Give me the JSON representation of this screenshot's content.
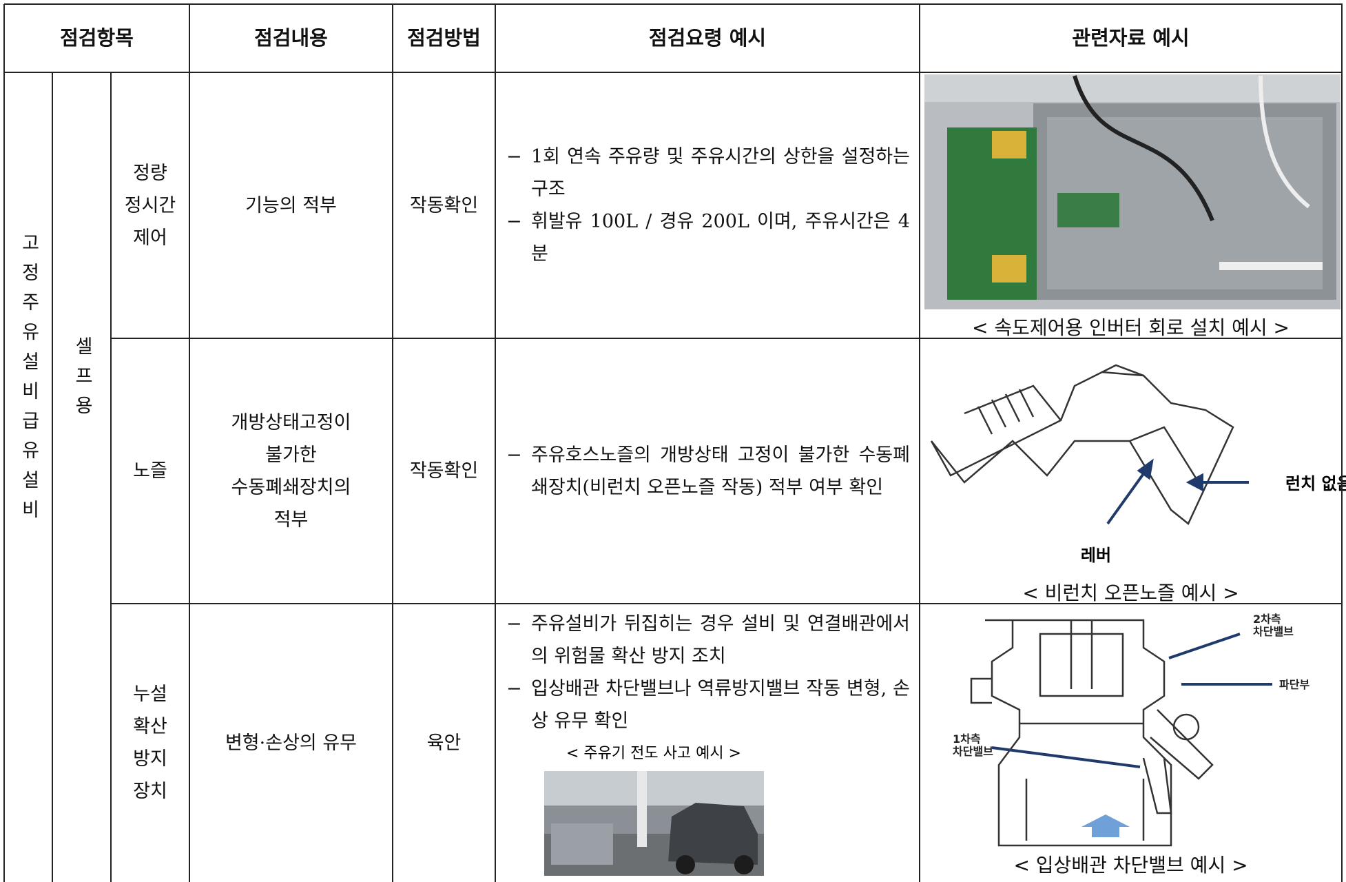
{
  "header": {
    "columns": [
      "점검항목",
      "점검내용",
      "점검방법",
      "점검요령 예시",
      "관련자료 예시"
    ]
  },
  "category": "고정주유설비급유설비",
  "subcategory": "셀프용",
  "guide_marker": "−",
  "rows": [
    {
      "item": [
        "정량",
        "정시간",
        "제어"
      ],
      "content": [
        "기능의 적부"
      ],
      "method": "작동확인",
      "guide": [
        "1회 연속 주유량 및 주유시간의 상한을 설정하는 구조",
        "휘발유 100L / 경유 200L 이며, 주유시간은 4분"
      ],
      "reference": {
        "caption": "< 속도제어용 인버터 회로 설치 예시 >"
      }
    },
    {
      "item": [
        "노즐"
      ],
      "content": [
        "개방상태고정이",
        "불가한",
        "수동폐쇄장치의",
        "적부"
      ],
      "method": "작동확인",
      "guide": [
        "주유호스노즐의 개방상태 고정이 불가한 수동폐쇄장치(비런치 오픈노즐 작동) 적부 여부 확인"
      ],
      "reference": {
        "caption": "< 비런치 오픈노즐 예시 >",
        "labels": [
          "런치 없음",
          "레버"
        ]
      }
    },
    {
      "item": [
        "누설",
        "확산",
        "방지",
        "장치"
      ],
      "content": [
        "변형·손상의 유무"
      ],
      "method": "육안",
      "guide": [
        "주유설비가 뒤집히는 경우 설비 및 연결배관에서의 위험물 확산 방지 조치",
        "입상배관 차단밸브나 역류방지밸브 작동 변형, 손상 유무 확인"
      ],
      "photo_caption": "< 주유기 전도 사고 예시 >",
      "reference": {
        "caption": "< 입상배관 차단밸브 예시 >",
        "labels": [
          [
            "2차측",
            "차단밸브"
          ],
          [
            "파단부"
          ],
          [
            "1차측",
            "차단밸브"
          ]
        ]
      }
    }
  ]
}
